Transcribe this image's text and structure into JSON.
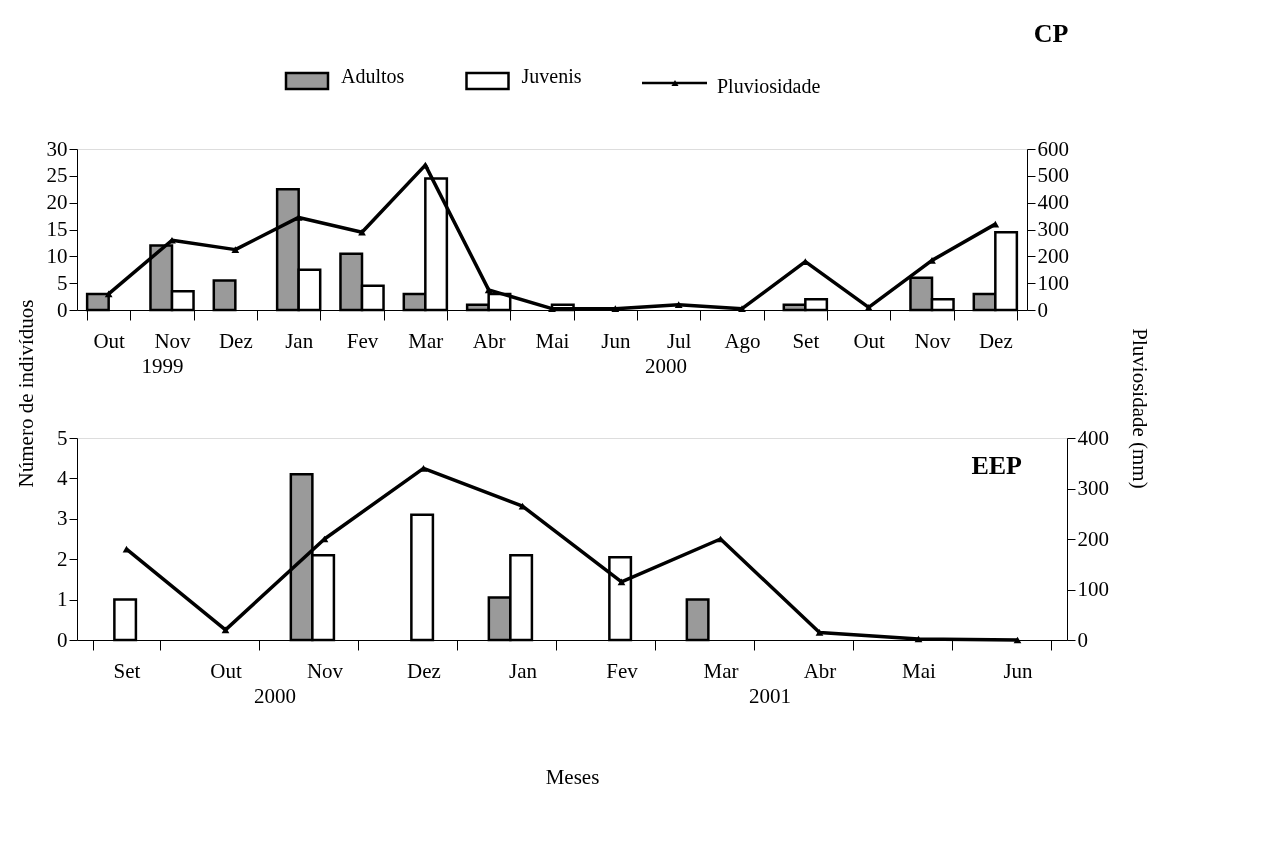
{
  "chart_data": [
    {
      "type": "bar",
      "title": "CP",
      "categories": [
        "Out",
        "Nov",
        "Dez",
        "Jan",
        "Fev",
        "Mar",
        "Abr",
        "Mai",
        "Jun",
        "Jul",
        "Ago",
        "Set",
        "Out",
        "Nov",
        "Dez"
      ],
      "series": [
        {
          "name": "Adultos",
          "color": "#9a9a9a",
          "values": [
            3,
            12,
            5.5,
            22.5,
            10.5,
            3,
            1,
            null,
            null,
            null,
            null,
            1,
            null,
            6,
            3
          ]
        },
        {
          "name": "Juvenis",
          "color": "#ffffff",
          "values": [
            null,
            3.5,
            null,
            7.5,
            4.5,
            24.5,
            3,
            1,
            null,
            null,
            null,
            2,
            null,
            2,
            14.5
          ]
        },
        {
          "name": "Pluviosidade",
          "color": "#000000",
          "type": "line",
          "axis": "y2",
          "values": [
            60,
            260,
            225,
            345,
            290,
            540,
            75,
            5,
            5,
            20,
            5,
            180,
            10,
            185,
            320
          ]
        }
      ],
      "ylim": [
        0,
        30
      ],
      "yticks": [
        0,
        5,
        10,
        15,
        20,
        25,
        30
      ],
      "y2lim": [
        0,
        600
      ],
      "y2ticks": [
        0,
        100,
        200,
        300,
        400,
        500,
        600
      ],
      "annotations": [
        "1999",
        "2000"
      ],
      "legend": "top",
      "marker": "triangle",
      "line_style": "solid",
      "grid": false
    },
    {
      "type": "bar",
      "title": "EEP",
      "categories": [
        "Set",
        "Out",
        "Nov",
        "Dez",
        "Jan",
        "Fev",
        "Mar",
        "Abr",
        "Mai",
        "Jun"
      ],
      "series": [
        {
          "color": "#9a9a9a",
          "values": [
            null,
            null,
            4.1,
            null,
            1.05,
            null,
            1,
            null,
            null,
            null
          ]
        },
        {
          "color": "#ffffff",
          "values": [
            1,
            null,
            2.1,
            3.1,
            2.1,
            2.05,
            null,
            null,
            null,
            null
          ]
        },
        {
          "color": "#000000",
          "type": "line",
          "axis": "y2",
          "values": [
            180,
            20,
            200,
            340,
            265,
            115,
            200,
            15,
            2,
            0
          ]
        }
      ],
      "ylim": [
        0,
        5
      ],
      "yticks": [
        0,
        1,
        2,
        3,
        4,
        5
      ],
      "y2lim": [
        0,
        400
      ],
      "y2ticks": [
        0,
        100,
        200,
        300,
        400
      ],
      "xlabel": "Meses",
      "ylabel": "Número de indivíduos",
      "y2label": "Pluviosidade (mm)",
      "annotations": [
        "2000",
        "2001"
      ],
      "marker": "triangle",
      "line_style": "solid",
      "grid": false
    }
  ]
}
